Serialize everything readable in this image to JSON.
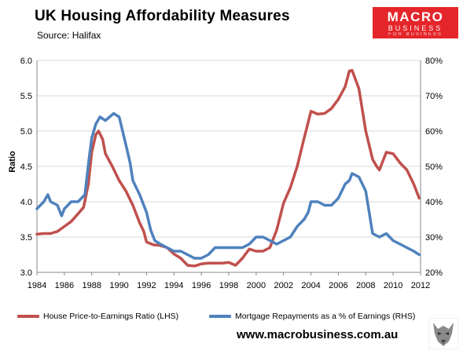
{
  "header": {
    "title": "UK Housing  Affordability Measures",
    "subtitle": "Source:  Halifax"
  },
  "logo": {
    "line1": "MACRO",
    "line2": "BUSINESS",
    "line3": "FOR BUSINESS"
  },
  "footer": {
    "url": "www.macrobusiness.com.au"
  },
  "colors": {
    "series1": "#c0504d",
    "series2": "#4f81bd",
    "gridline": "#d9d9d9",
    "logo_bg": "#e4262b"
  },
  "chart_data": {
    "type": "line",
    "ylabel": "Ratio",
    "x_ticks": [
      "1984",
      "1986",
      "1988",
      "1990",
      "1992",
      "1994",
      "1996",
      "1998",
      "2000",
      "2002",
      "2004",
      "2006",
      "2008",
      "2010",
      "2012"
    ],
    "xlim": [
      1984,
      2012
    ],
    "y_left_ticks": [
      "3.0",
      "3.5",
      "4.0",
      "4.5",
      "5.0",
      "5.5",
      "6.0"
    ],
    "y_left_lim": [
      3.0,
      6.0
    ],
    "y_right_ticks": [
      "20%",
      "30%",
      "40%",
      "50%",
      "60%",
      "70%",
      "80%"
    ],
    "y_right_lim": [
      20,
      80
    ],
    "grid": "horizontal",
    "legend_position": "bottom",
    "series": [
      {
        "name": "House Price-to-Earnings Ratio (LHS)",
        "axis": "left",
        "color": "#c0504d",
        "points": [
          [
            1984,
            3.54
          ],
          [
            1984.5,
            3.55
          ],
          [
            1985,
            3.55
          ],
          [
            1985.5,
            3.58
          ],
          [
            1986,
            3.65
          ],
          [
            1986.5,
            3.72
          ],
          [
            1987,
            3.83
          ],
          [
            1987.4,
            3.92
          ],
          [
            1987.75,
            4.25
          ],
          [
            1988,
            4.7
          ],
          [
            1988.3,
            4.95
          ],
          [
            1988.5,
            5.0
          ],
          [
            1988.8,
            4.88
          ],
          [
            1989,
            4.68
          ],
          [
            1989.5,
            4.5
          ],
          [
            1990,
            4.3
          ],
          [
            1990.5,
            4.15
          ],
          [
            1991,
            3.95
          ],
          [
            1991.5,
            3.7
          ],
          [
            1991.8,
            3.58
          ],
          [
            1992,
            3.43
          ],
          [
            1992.5,
            3.39
          ],
          [
            1993,
            3.38
          ],
          [
            1993.5,
            3.35
          ],
          [
            1994,
            3.26
          ],
          [
            1994.5,
            3.2
          ],
          [
            1995,
            3.1
          ],
          [
            1995.5,
            3.09
          ],
          [
            1996,
            3.12
          ],
          [
            1996.5,
            3.13
          ],
          [
            1997,
            3.13
          ],
          [
            1997.5,
            3.13
          ],
          [
            1998,
            3.14
          ],
          [
            1998.5,
            3.1
          ],
          [
            1999,
            3.2
          ],
          [
            1999.5,
            3.33
          ],
          [
            2000,
            3.3
          ],
          [
            2000.5,
            3.3
          ],
          [
            2001,
            3.35
          ],
          [
            2001.5,
            3.6
          ],
          [
            2002,
            3.98
          ],
          [
            2002.5,
            4.2
          ],
          [
            2003,
            4.5
          ],
          [
            2003.5,
            4.9
          ],
          [
            2004,
            5.28
          ],
          [
            2004.5,
            5.24
          ],
          [
            2005,
            5.25
          ],
          [
            2005.5,
            5.32
          ],
          [
            2006,
            5.45
          ],
          [
            2006.5,
            5.63
          ],
          [
            2006.8,
            5.85
          ],
          [
            2007,
            5.86
          ],
          [
            2007.5,
            5.6
          ],
          [
            2008,
            5.0
          ],
          [
            2008.5,
            4.6
          ],
          [
            2008.8,
            4.5
          ],
          [
            2009,
            4.45
          ],
          [
            2009.5,
            4.7
          ],
          [
            2010,
            4.68
          ],
          [
            2010.5,
            4.55
          ],
          [
            2011,
            4.45
          ],
          [
            2011.5,
            4.25
          ],
          [
            2011.9,
            4.05
          ]
        ]
      },
      {
        "name": "Mortgage Repayments as a % of Earnings (RHS)",
        "axis": "right",
        "color": "#4f81bd",
        "points": [
          [
            1984,
            38
          ],
          [
            1984.5,
            40
          ],
          [
            1984.8,
            42
          ],
          [
            1985,
            40
          ],
          [
            1985.5,
            39
          ],
          [
            1985.8,
            36
          ],
          [
            1986,
            38
          ],
          [
            1986.5,
            40
          ],
          [
            1987,
            40
          ],
          [
            1987.5,
            42
          ],
          [
            1987.8,
            52
          ],
          [
            1988,
            58
          ],
          [
            1988.3,
            62
          ],
          [
            1988.6,
            64
          ],
          [
            1989,
            63
          ],
          [
            1989.3,
            64
          ],
          [
            1989.6,
            65
          ],
          [
            1990,
            64
          ],
          [
            1990.5,
            56
          ],
          [
            1990.8,
            51
          ],
          [
            1991,
            46
          ],
          [
            1991.5,
            42
          ],
          [
            1992,
            37
          ],
          [
            1992.3,
            32
          ],
          [
            1992.6,
            29
          ],
          [
            1993,
            28
          ],
          [
            1993.5,
            27
          ],
          [
            1994,
            26
          ],
          [
            1994.5,
            26
          ],
          [
            1995,
            25
          ],
          [
            1995.5,
            24
          ],
          [
            1996,
            24
          ],
          [
            1996.5,
            25
          ],
          [
            1997,
            27
          ],
          [
            1997.5,
            27
          ],
          [
            1998,
            27
          ],
          [
            1998.5,
            27
          ],
          [
            1999,
            27
          ],
          [
            1999.5,
            28
          ],
          [
            2000,
            30
          ],
          [
            2000.5,
            30
          ],
          [
            2001,
            29
          ],
          [
            2001.5,
            28
          ],
          [
            2002,
            29
          ],
          [
            2002.5,
            30
          ],
          [
            2003,
            33
          ],
          [
            2003.5,
            35
          ],
          [
            2003.8,
            37
          ],
          [
            2004,
            40
          ],
          [
            2004.5,
            40
          ],
          [
            2005,
            39
          ],
          [
            2005.5,
            39
          ],
          [
            2006,
            41
          ],
          [
            2006.5,
            45
          ],
          [
            2006.8,
            46
          ],
          [
            2007,
            48
          ],
          [
            2007.5,
            47
          ],
          [
            2008,
            43
          ],
          [
            2008.5,
            31
          ],
          [
            2009,
            30
          ],
          [
            2009.5,
            31
          ],
          [
            2010,
            29
          ],
          [
            2010.5,
            28
          ],
          [
            2011,
            27
          ],
          [
            2011.5,
            26
          ],
          [
            2011.9,
            25
          ]
        ]
      }
    ]
  }
}
